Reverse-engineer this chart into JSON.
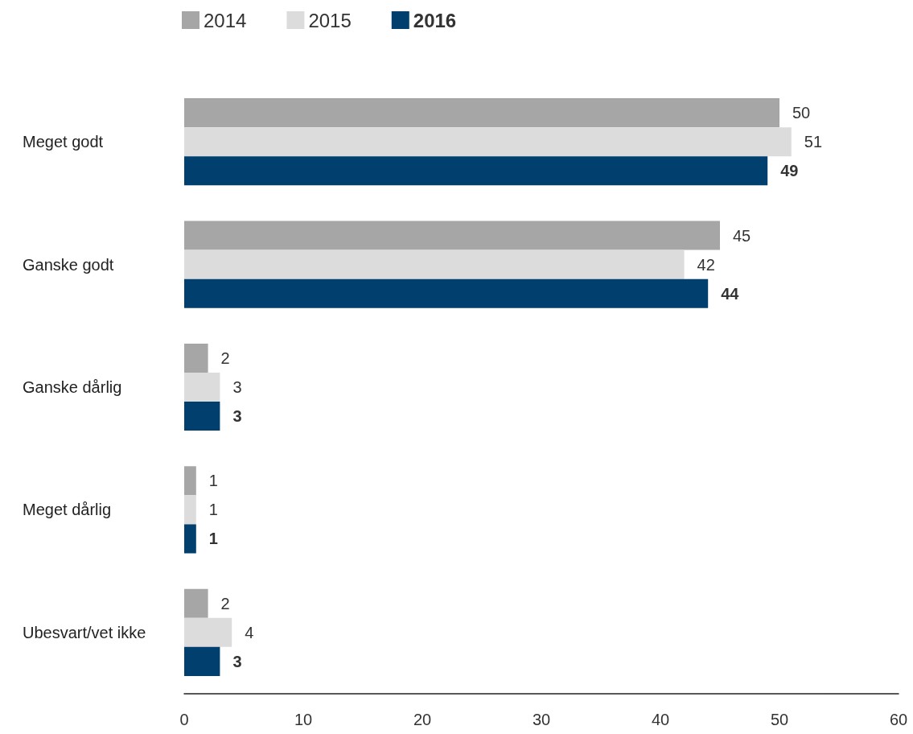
{
  "chart_data": {
    "type": "bar",
    "orientation": "horizontal",
    "categories": [
      "Meget godt",
      "Ganske godt",
      "Ganske dårlig",
      "Meget dårlig",
      "Ubesvart/vet ikke"
    ],
    "series": [
      {
        "name": "2014",
        "color": "#a6a6a6",
        "values": [
          50,
          45,
          2,
          1,
          2
        ]
      },
      {
        "name": "2015",
        "color": "#dcdcdc",
        "values": [
          51,
          42,
          3,
          1,
          4
        ]
      },
      {
        "name": "2016",
        "color": "#003f6e",
        "values": [
          49,
          44,
          3,
          1,
          3
        ]
      }
    ],
    "xlim": [
      0,
      60
    ],
    "xticks": [
      0,
      10,
      20,
      30,
      40,
      50,
      60
    ],
    "data_labels": true,
    "legend": "top left",
    "grid": false
  }
}
